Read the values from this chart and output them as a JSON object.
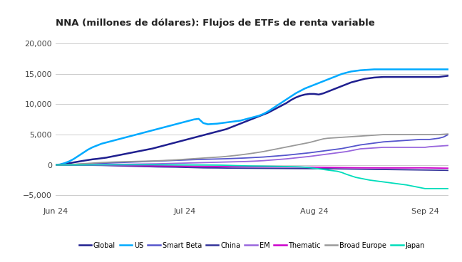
{
  "title": "NNA (millones de dólares): Flujos de ETFs de renta variable",
  "title_fontsize": 9.5,
  "title_bold": true,
  "xlim": [
    0,
    85
  ],
  "ylim": [
    -6500,
    22000
  ],
  "yticks": [
    -5000,
    0,
    5000,
    10000,
    15000,
    20000
  ],
  "xtick_positions": [
    0,
    28,
    56,
    80
  ],
  "xtick_labels": [
    "Jun 24",
    "Jul 24",
    "Aug 24",
    "Sep 24"
  ],
  "background_color": "#ffffff",
  "grid_color": "#cccccc",
  "series": {
    "Global": {
      "color": "#1f1f8f",
      "linewidth": 1.8,
      "values": [
        0,
        50,
        150,
        280,
        420,
        550,
        680,
        800,
        920,
        1000,
        1100,
        1200,
        1350,
        1500,
        1650,
        1800,
        1950,
        2100,
        2250,
        2400,
        2550,
        2700,
        2900,
        3100,
        3300,
        3500,
        3700,
        3900,
        4100,
        4300,
        4500,
        4700,
        4900,
        5100,
        5300,
        5500,
        5700,
        5900,
        6200,
        6500,
        6800,
        7100,
        7400,
        7700,
        8000,
        8300,
        8600,
        9000,
        9400,
        9800,
        10200,
        10700,
        11100,
        11400,
        11600,
        11700,
        11700,
        11600,
        11800,
        12100,
        12400,
        12700,
        13000,
        13300,
        13600,
        13800,
        14000,
        14200,
        14300,
        14400,
        14450,
        14500,
        14500,
        14500,
        14500,
        14500,
        14500,
        14500,
        14500,
        14500,
        14500,
        14500,
        14500,
        14500,
        14600,
        14700
      ]
    },
    "US": {
      "color": "#00aaff",
      "linewidth": 1.8,
      "values": [
        0,
        80,
        300,
        600,
        1000,
        1500,
        2000,
        2500,
        2900,
        3200,
        3500,
        3700,
        3900,
        4100,
        4300,
        4500,
        4700,
        4900,
        5100,
        5300,
        5500,
        5700,
        5900,
        6100,
        6300,
        6500,
        6700,
        6900,
        7100,
        7300,
        7500,
        7600,
        6900,
        6700,
        6750,
        6800,
        6900,
        7000,
        7100,
        7200,
        7300,
        7500,
        7700,
        7900,
        8100,
        8400,
        8800,
        9300,
        9800,
        10300,
        10800,
        11300,
        11800,
        12200,
        12600,
        12900,
        13200,
        13500,
        13800,
        14100,
        14400,
        14700,
        15000,
        15200,
        15400,
        15500,
        15600,
        15650,
        15700,
        15750,
        15750,
        15750,
        15750,
        15750,
        15750,
        15750,
        15750,
        15750,
        15750,
        15750,
        15750,
        15750,
        15750,
        15750,
        15750,
        15750
      ]
    },
    "Smart Beta": {
      "color": "#5555cc",
      "linewidth": 1.3,
      "values": [
        0,
        10,
        25,
        50,
        80,
        120,
        150,
        180,
        210,
        240,
        270,
        300,
        330,
        360,
        390,
        420,
        450,
        480,
        510,
        540,
        570,
        600,
        630,
        660,
        690,
        720,
        750,
        780,
        810,
        840,
        870,
        900,
        920,
        940,
        960,
        980,
        1000,
        1020,
        1050,
        1080,
        1110,
        1140,
        1180,
        1220,
        1260,
        1300,
        1360,
        1420,
        1480,
        1540,
        1600,
        1680,
        1760,
        1840,
        1920,
        2000,
        2100,
        2200,
        2300,
        2400,
        2500,
        2600,
        2700,
        2850,
        3000,
        3150,
        3300,
        3400,
        3500,
        3600,
        3700,
        3800,
        3850,
        3900,
        3950,
        4000,
        4050,
        4100,
        4150,
        4200,
        4200,
        4200,
        4300,
        4400,
        4600,
        5000
      ]
    },
    "China": {
      "color": "#333399",
      "linewidth": 1.3,
      "values": [
        0,
        -5,
        -10,
        -15,
        -20,
        -30,
        -40,
        -50,
        -60,
        -70,
        -80,
        -100,
        -120,
        -140,
        -160,
        -180,
        -200,
        -220,
        -240,
        -260,
        -280,
        -300,
        -320,
        -330,
        -340,
        -350,
        -360,
        -380,
        -400,
        -420,
        -440,
        -460,
        -480,
        -490,
        -495,
        -500,
        -510,
        -520,
        -530,
        -535,
        -540,
        -545,
        -550,
        -555,
        -560,
        -565,
        -570,
        -575,
        -580,
        -585,
        -590,
        -595,
        -600,
        -605,
        -610,
        -615,
        -620,
        -625,
        -630,
        -635,
        -640,
        -650,
        -660,
        -670,
        -680,
        -690,
        -700,
        -710,
        -720,
        -730,
        -740,
        -750,
        -760,
        -770,
        -780,
        -790,
        -800,
        -810,
        -820,
        -830,
        -840,
        -850,
        -860,
        -870,
        -880,
        -900
      ]
    },
    "EM": {
      "color": "#9966dd",
      "linewidth": 1.3,
      "values": [
        0,
        5,
        10,
        15,
        20,
        25,
        30,
        35,
        40,
        50,
        60,
        70,
        80,
        90,
        100,
        110,
        120,
        130,
        140,
        150,
        160,
        170,
        180,
        200,
        220,
        240,
        260,
        280,
        300,
        320,
        340,
        360,
        380,
        400,
        420,
        440,
        460,
        480,
        500,
        520,
        540,
        560,
        590,
        620,
        660,
        700,
        760,
        820,
        880,
        940,
        1000,
        1080,
        1160,
        1240,
        1320,
        1400,
        1500,
        1600,
        1700,
        1800,
        1900,
        2000,
        2100,
        2200,
        2350,
        2500,
        2650,
        2700,
        2750,
        2800,
        2850,
        2900,
        2900,
        2900,
        2900,
        2900,
        2900,
        2900,
        2900,
        2900,
        2900,
        3000,
        3050,
        3100,
        3150,
        3200
      ]
    },
    "Thematic": {
      "color": "#cc00cc",
      "linewidth": 1.3,
      "values": [
        0,
        -3,
        -6,
        -10,
        -14,
        -18,
        -22,
        -26,
        -30,
        -35,
        -40,
        -50,
        -60,
        -70,
        -80,
        -90,
        -100,
        -110,
        -120,
        -130,
        -140,
        -150,
        -160,
        -170,
        -180,
        -190,
        -200,
        -210,
        -220,
        -230,
        -240,
        -250,
        -255,
        -260,
        -265,
        -270,
        -275,
        -280,
        -285,
        -290,
        -295,
        -300,
        -305,
        -310,
        -315,
        -320,
        -325,
        -330,
        -335,
        -340,
        -345,
        -350,
        -355,
        -360,
        -365,
        -370,
        -380,
        -390,
        -400,
        -410,
        -420,
        -430,
        -440,
        -450,
        -460,
        -470,
        -475,
        -480,
        -485,
        -485,
        -490,
        -495,
        -495,
        -495,
        -495,
        -495,
        -495,
        -490,
        -485,
        -480,
        -490,
        -500,
        -510,
        -520,
        -530,
        -540
      ]
    },
    "Broad Europe": {
      "color": "#999999",
      "linewidth": 1.3,
      "values": [
        0,
        10,
        30,
        60,
        100,
        150,
        200,
        250,
        300,
        350,
        400,
        430,
        460,
        490,
        510,
        530,
        550,
        570,
        590,
        610,
        630,
        650,
        680,
        710,
        750,
        790,
        830,
        880,
        930,
        980,
        1030,
        1080,
        1130,
        1180,
        1230,
        1280,
        1330,
        1400,
        1480,
        1560,
        1650,
        1750,
        1850,
        1960,
        2080,
        2200,
        2350,
        2500,
        2650,
        2800,
        2950,
        3100,
        3250,
        3400,
        3550,
        3700,
        3900,
        4100,
        4300,
        4400,
        4450,
        4500,
        4550,
        4600,
        4650,
        4700,
        4750,
        4800,
        4850,
        4900,
        4950,
        5000,
        5000,
        5000,
        5000,
        5000,
        5000,
        5000,
        5000,
        5000,
        5000,
        5000,
        5000,
        5000,
        5050,
        5100
      ]
    },
    "Japan": {
      "color": "#00ddbb",
      "linewidth": 1.3,
      "values": [
        0,
        -5,
        -10,
        -15,
        -15,
        -12,
        -10,
        -8,
        -5,
        -3,
        0,
        3,
        5,
        8,
        10,
        12,
        15,
        18,
        20,
        22,
        25,
        25,
        22,
        18,
        15,
        12,
        8,
        5,
        2,
        0,
        -2,
        -5,
        -8,
        -12,
        -18,
        -25,
        -40,
        -60,
        -85,
        -110,
        -130,
        -150,
        -170,
        -180,
        -190,
        -200,
        -215,
        -230,
        -245,
        -260,
        -275,
        -290,
        -305,
        -330,
        -380,
        -450,
        -550,
        -650,
        -750,
        -850,
        -950,
        -1050,
        -1250,
        -1550,
        -1800,
        -2050,
        -2200,
        -2350,
        -2500,
        -2600,
        -2700,
        -2800,
        -2900,
        -3000,
        -3100,
        -3200,
        -3300,
        -3450,
        -3600,
        -3750,
        -3900,
        -3900,
        -3900,
        -3900,
        -3900,
        -3900
      ]
    }
  },
  "legend_order": [
    "Global",
    "US",
    "Smart Beta",
    "China",
    "EM",
    "Thematic",
    "Broad Europe",
    "Japan"
  ]
}
